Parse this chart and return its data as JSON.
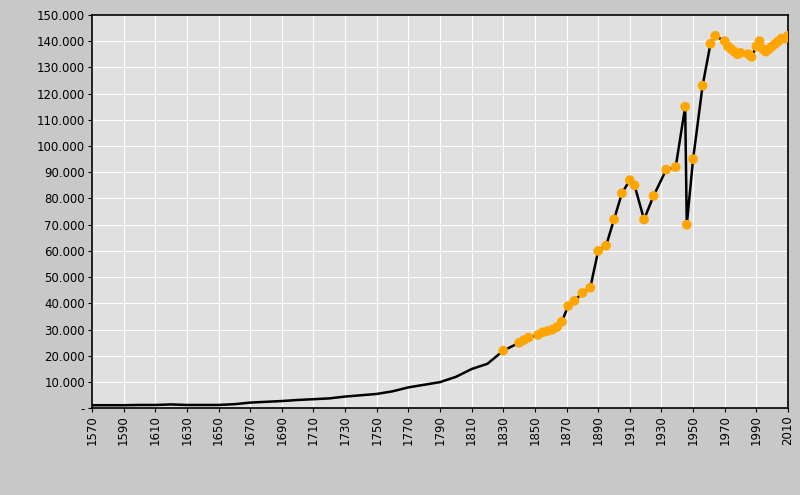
{
  "years": [
    1570,
    1580,
    1590,
    1600,
    1610,
    1620,
    1630,
    1640,
    1650,
    1660,
    1670,
    1680,
    1690,
    1700,
    1710,
    1720,
    1730,
    1740,
    1750,
    1760,
    1770,
    1780,
    1790,
    1800,
    1810,
    1820,
    1830,
    1840,
    1843,
    1846,
    1852,
    1855,
    1858,
    1861,
    1864,
    1867,
    1871,
    1875,
    1880,
    1885,
    1890,
    1895,
    1900,
    1905,
    1910,
    1913,
    1919,
    1925,
    1933,
    1939,
    1945,
    1946,
    1950,
    1956,
    1961,
    1964,
    1970,
    1972,
    1974,
    1976,
    1978,
    1980,
    1985,
    1987,
    1990,
    1992,
    1994,
    1996,
    1998,
    2000,
    2002,
    2004,
    2006,
    2008,
    2010
  ],
  "population": [
    1200,
    1200,
    1200,
    1300,
    1300,
    1500,
    1300,
    1300,
    1300,
    1600,
    2200,
    2500,
    2800,
    3200,
    3500,
    3800,
    4500,
    5000,
    5500,
    6500,
    8000,
    9000,
    10000,
    12000,
    15000,
    17000,
    22000,
    25000,
    26000,
    27000,
    28000,
    29000,
    29500,
    30000,
    31000,
    33000,
    39000,
    41000,
    44000,
    46000,
    60000,
    62000,
    72000,
    82000,
    87000,
    85000,
    72000,
    81000,
    91000,
    92000,
    115000,
    70000,
    95000,
    123000,
    139000,
    142000,
    140000,
    138000,
    137000,
    136000,
    135000,
    135500,
    135000,
    134000,
    138000,
    140000,
    137000,
    136000,
    137000,
    138000,
    139000,
    140000,
    141000,
    141000,
    142000
  ],
  "line_color": "#000000",
  "marker_color": "#FFA500",
  "marker_size": 7,
  "background_color": "#c8c8c8",
  "plot_background": "#e0e0e0",
  "grid_color": "#ffffff",
  "ylim": [
    0,
    150000
  ],
  "ytick_step": 10000,
  "xlim": [
    1570,
    2010
  ],
  "xtick_start": 1570,
  "xtick_step": 20,
  "marker_start_year": 1830,
  "figsize": [
    8.0,
    4.95
  ],
  "dpi": 100
}
